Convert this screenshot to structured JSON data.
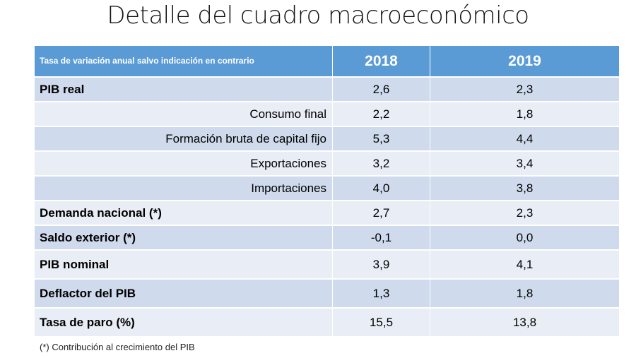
{
  "title": "Detalle del cuadro macroeconómico",
  "table": {
    "header_label": "Tasa de variación anual salvo indicación en contrario",
    "years": [
      "2018",
      "2019"
    ],
    "rows": [
      {
        "label": "PIB real",
        "v2018": "2,6",
        "v2019": "2,3"
      },
      {
        "label": "Consumo final",
        "v2018": "2,2",
        "v2019": "1,8"
      },
      {
        "label": "Formación bruta de capital fijo",
        "v2018": "5,3",
        "v2019": "4,4"
      },
      {
        "label": "Exportaciones",
        "v2018": "3,2",
        "v2019": "3,4"
      },
      {
        "label": "Importaciones",
        "v2018": "4,0",
        "v2019": "3,8"
      },
      {
        "label": "Demanda nacional (*)",
        "v2018": "2,7",
        "v2019": "2,3"
      },
      {
        "label": "Saldo exterior (*)",
        "v2018": "-0,1",
        "v2019": "0,0"
      },
      {
        "label": "PIB nominal",
        "v2018": "3,9",
        "v2019": "4,1"
      },
      {
        "label": "Deflactor del PIB",
        "v2018": "1,3",
        "v2019": "1,8"
      },
      {
        "label": "Tasa de paro (%)",
        "v2018": "15,5",
        "v2019": "13,8"
      }
    ]
  },
  "footnote": "(*) Contribución al crecimiento del PIB",
  "colors": {
    "header": "#5b9bd5",
    "row_dark": "#cfdaec",
    "row_light": "#e9edf5"
  }
}
